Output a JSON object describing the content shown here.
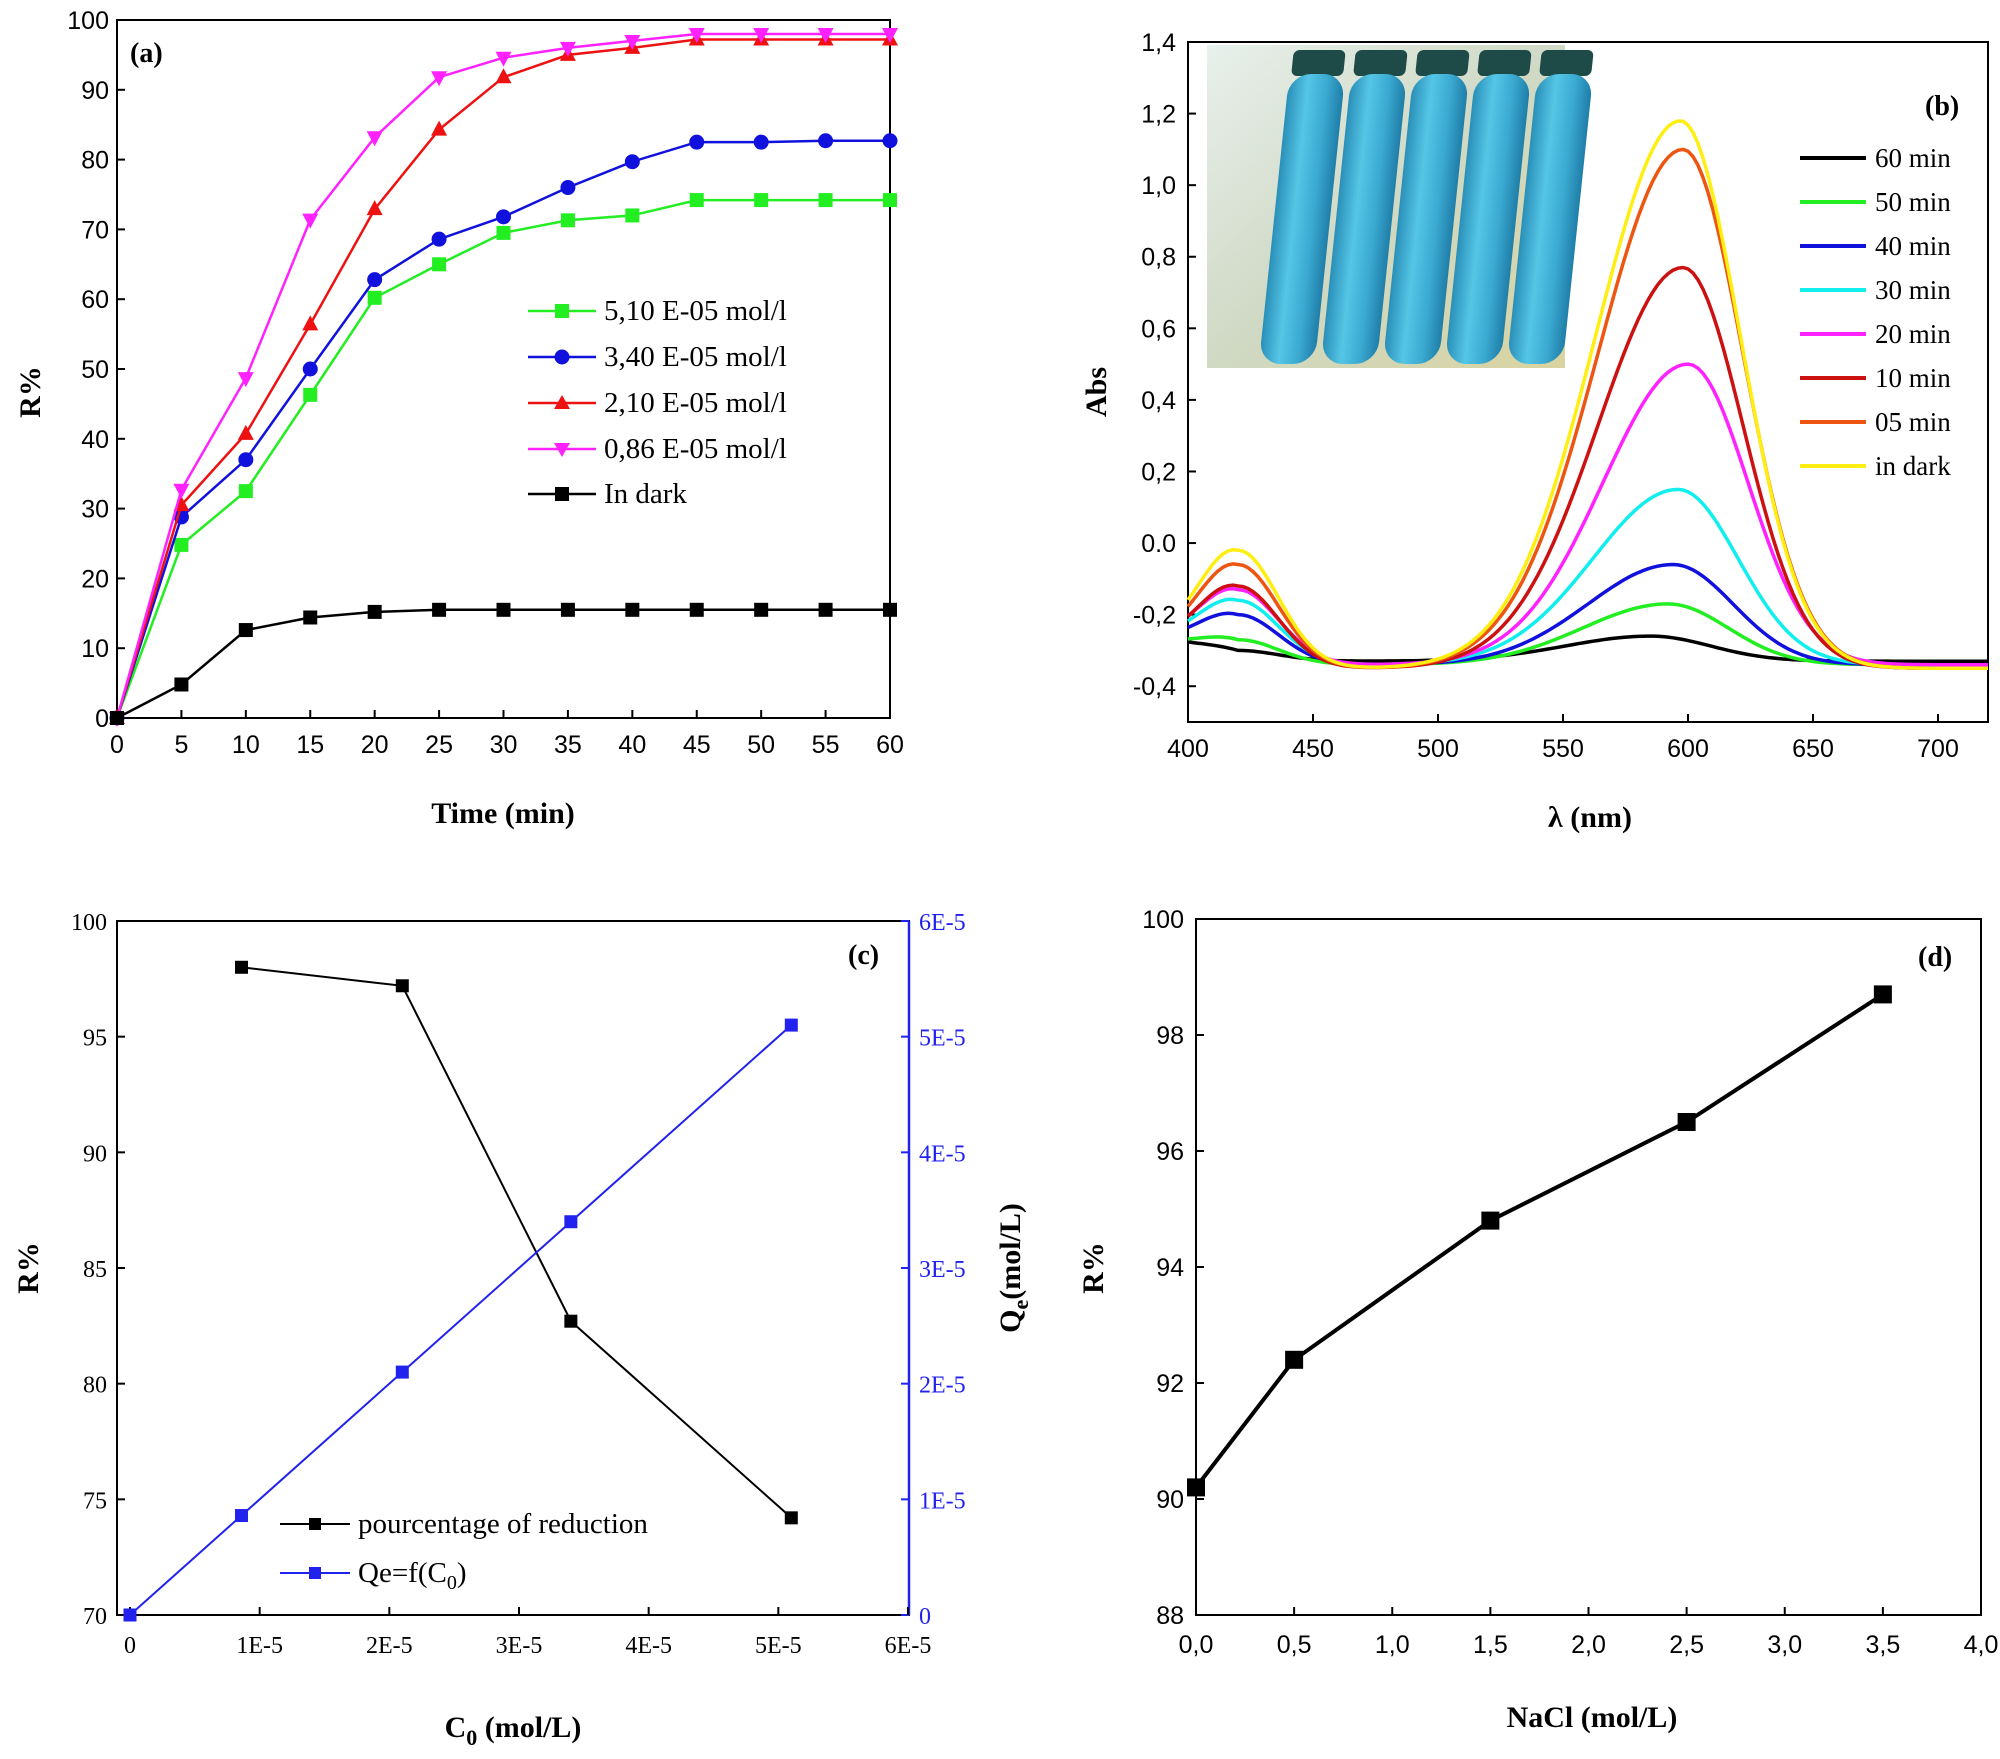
{
  "colors": {
    "black": "#000000",
    "green": "#22ee22",
    "blue": "#1111dd",
    "red": "#ee1111",
    "magenta": "#ff22ff",
    "cyan": "#11eeee",
    "darkred": "#cc1111",
    "orange": "#ee5511",
    "yellow": "#ffee11",
    "axisBlue": "#2222ee"
  },
  "chart_data": [
    {
      "panel": "(a)",
      "type": "line",
      "xlabel": "Time (min)",
      "ylabel": "R%",
      "xlim": [
        0,
        60
      ],
      "ylim": [
        0,
        100
      ],
      "xticks": [
        "0",
        "5",
        "10",
        "15",
        "20",
        "25",
        "30",
        "35",
        "40",
        "45",
        "50",
        "55",
        "60"
      ],
      "yticks": [
        "0",
        "10",
        "20",
        "30",
        "40",
        "50",
        "60",
        "70",
        "80",
        "90",
        "100"
      ],
      "legend_position": "center-right",
      "x": [
        0,
        5,
        10,
        15,
        20,
        25,
        30,
        35,
        40,
        45,
        50,
        55,
        60
      ],
      "series": [
        {
          "name": "5,10 E-05 mol/l",
          "color": "#22ee22",
          "marker": "square",
          "values": [
            0,
            24.8,
            32.5,
            46.3,
            60.2,
            65,
            69.5,
            71.3,
            72,
            74.2,
            74.2,
            74.2,
            74.2
          ]
        },
        {
          "name": "3,40 E-05 mol/l",
          "color": "#1111dd",
          "marker": "circle",
          "values": [
            0,
            28.8,
            37,
            50,
            62.8,
            68.6,
            71.8,
            76,
            79.7,
            82.5,
            82.5,
            82.7,
            82.7
          ]
        },
        {
          "name": "2,10 E-05 mol/l",
          "color": "#ee1111",
          "marker": "triangle-up",
          "values": [
            0,
            30.5,
            40.7,
            56.4,
            72.9,
            84.3,
            91.8,
            95,
            96,
            97.2,
            97.2,
            97.2,
            97.2
          ]
        },
        {
          "name": "0,86 E-05 mol/l",
          "color": "#ff22ff",
          "marker": "triangle-down",
          "values": [
            0,
            32.7,
            48.7,
            71.4,
            83.2,
            91.8,
            94.6,
            96,
            97,
            98,
            98,
            98,
            98
          ]
        },
        {
          "name": "In dark",
          "color": "#000000",
          "marker": "square",
          "values": [
            0,
            4.8,
            12.6,
            14.4,
            15.2,
            15.5,
            15.5,
            15.5,
            15.5,
            15.5,
            15.5,
            15.5,
            15.5
          ]
        }
      ]
    },
    {
      "panel": "(b)",
      "type": "line",
      "xlabel": "λ (nm)",
      "ylabel": "Abs",
      "xlim": [
        400,
        720
      ],
      "ylim": [
        -0.5,
        1.4
      ],
      "xticks": [
        "400",
        "450",
        "500",
        "550",
        "600",
        "650",
        "700"
      ],
      "yticks": [
        "-0,4",
        "-0,2",
        "0.0",
        "0,2",
        "0,4",
        "0,6",
        "0,8",
        "1,0",
        "1,2",
        "1,4"
      ],
      "inset": "photograph of five blue-filled test tubes",
      "legend_position": "top-right",
      "peaks": {
        "first_nm": 420,
        "second_nm": 598
      },
      "series": [
        {
          "name": "60 min",
          "color": "#000000",
          "base": -0.33,
          "first_peak": -0.3,
          "second_peak": -0.26,
          "second_center": 585
        },
        {
          "name": "50 min",
          "color": "#22ee22",
          "base": -0.34,
          "first_peak": -0.27,
          "second_peak": -0.17,
          "second_center": 592
        },
        {
          "name": "40 min",
          "color": "#1111dd",
          "base": -0.34,
          "first_peak": -0.2,
          "second_peak": -0.06,
          "second_center": 594
        },
        {
          "name": "30 min",
          "color": "#11eeee",
          "base": -0.34,
          "first_peak": -0.16,
          "second_peak": 0.15,
          "second_center": 596
        },
        {
          "name": "20 min",
          "color": "#ff22ff",
          "base": -0.34,
          "first_peak": -0.13,
          "second_peak": 0.5,
          "second_center": 600
        },
        {
          "name": "10 min",
          "color": "#cc1111",
          "base": -0.35,
          "first_peak": -0.12,
          "second_peak": 0.77,
          "second_center": 598
        },
        {
          "name": "05 min",
          "color": "#ee5511",
          "base": -0.35,
          "first_peak": -0.06,
          "second_peak": 1.1,
          "second_center": 598
        },
        {
          "name": "in dark",
          "color": "#ffee11",
          "base": -0.35,
          "first_peak": -0.02,
          "second_peak": 1.18,
          "second_center": 597
        }
      ]
    },
    {
      "panel": "(c)",
      "type": "line",
      "xlabel": "C",
      "xlabel_sub": "0",
      "xlabel_unit": " (mol/L)",
      "ylabel": "R%",
      "y2label": "Q",
      "y2label_sub": "e",
      "y2label_unit": "(mol/L)",
      "xlim": [
        0,
        6e-05
      ],
      "ylim": [
        70,
        100
      ],
      "y2lim": [
        0,
        6e-05
      ],
      "xticks": [
        "0",
        "1E-5",
        "2E-5",
        "3E-5",
        "4E-5",
        "5E-5",
        "6E-5"
      ],
      "yticks": [
        "70",
        "75",
        "80",
        "85",
        "90",
        "95",
        "100"
      ],
      "y2ticks": [
        "0",
        "1E-5",
        "2E-5",
        "3E-5",
        "4E-5",
        "5E-5",
        "6E-5"
      ],
      "legend_position": "bottom-left",
      "series": [
        {
          "name": "pourcentage of reduction",
          "color": "#000000",
          "axis": "left",
          "x": [
            8.6e-06,
            2.1e-05,
            3.4e-05,
            5.1e-05
          ],
          "values": [
            98,
            97.2,
            82.7,
            74.2
          ]
        },
        {
          "name": "Qe=f(C",
          "name_sub": "0",
          "name_tail": ")",
          "color": "#2222ee",
          "axis": "right",
          "x": [
            0,
            8.6e-06,
            2.1e-05,
            3.4e-05,
            5.1e-05
          ],
          "values": [
            0,
            8.6e-06,
            2.1e-05,
            3.4e-05,
            5.1e-05
          ]
        }
      ]
    },
    {
      "panel": "(d)",
      "type": "line",
      "xlabel": "NaCl (mol/L)",
      "ylabel": "R%",
      "xlim": [
        0,
        4
      ],
      "ylim": [
        88,
        100
      ],
      "xticks": [
        "0,0",
        "0,5",
        "1,0",
        "1,5",
        "2,0",
        "2,5",
        "3,0",
        "3,5",
        "4,0"
      ],
      "yticks": [
        "88",
        "90",
        "92",
        "94",
        "96",
        "98",
        "100"
      ],
      "series": [
        {
          "name": "R%",
          "color": "#000000",
          "x": [
            0,
            0.5,
            1.5,
            2.5,
            3.5
          ],
          "values": [
            90.2,
            92.4,
            94.8,
            96.5,
            98.7
          ]
        }
      ]
    }
  ]
}
